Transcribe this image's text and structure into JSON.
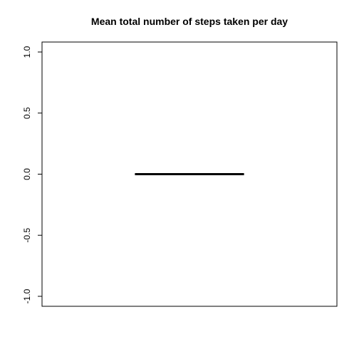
{
  "chart_data": {
    "type": "box",
    "title": "Mean total number of steps taken per day",
    "xlabel": "",
    "ylabel": "",
    "ylim": [
      -1.0,
      1.0
    ],
    "y_ticks": [
      -1.0,
      -0.5,
      0.0,
      0.5,
      1.0
    ],
    "y_tick_labels": [
      "-1.0",
      "-0.5",
      "0.0",
      "0.5",
      "1.0"
    ],
    "series": [
      {
        "median": 0.0,
        "q1": 0.0,
        "q3": 0.0,
        "whisker_low": 0.0,
        "whisker_high": 0.0
      }
    ],
    "grid": false,
    "colors": {
      "median_line": "#000000",
      "axis": "#000000"
    }
  }
}
